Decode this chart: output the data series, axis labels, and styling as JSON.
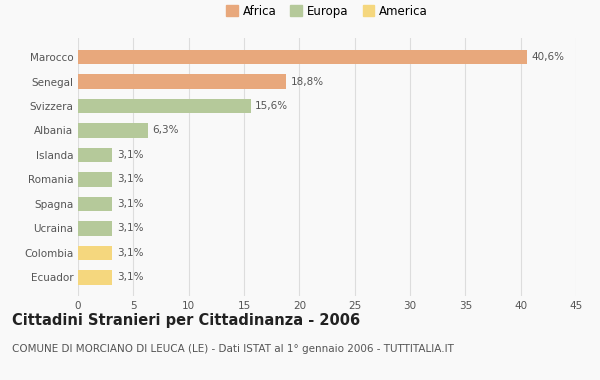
{
  "categories": [
    "Marocco",
    "Senegal",
    "Svizzera",
    "Albania",
    "Islanda",
    "Romania",
    "Spagna",
    "Ucraina",
    "Colombia",
    "Ecuador"
  ],
  "values": [
    40.6,
    18.8,
    15.6,
    6.3,
    3.1,
    3.1,
    3.1,
    3.1,
    3.1,
    3.1
  ],
  "labels": [
    "40,6%",
    "18,8%",
    "15,6%",
    "6,3%",
    "3,1%",
    "3,1%",
    "3,1%",
    "3,1%",
    "3,1%",
    "3,1%"
  ],
  "colors": [
    "#e8a87c",
    "#e8a87c",
    "#b5c99a",
    "#b5c99a",
    "#b5c99a",
    "#b5c99a",
    "#b5c99a",
    "#b5c99a",
    "#f5d77e",
    "#f5d77e"
  ],
  "legend_labels": [
    "Africa",
    "Europa",
    "America"
  ],
  "legend_colors": [
    "#e8a87c",
    "#b5c99a",
    "#f5d77e"
  ],
  "title": "Cittadini Stranieri per Cittadinanza - 2006",
  "subtitle": "COMUNE DI MORCIANO DI LEUCA (LE) - Dati ISTAT al 1° gennaio 2006 - TUTTITALIA.IT",
  "xlim": [
    0,
    45
  ],
  "xticks": [
    0,
    5,
    10,
    15,
    20,
    25,
    30,
    35,
    40,
    45
  ],
  "background_color": "#f9f9f9",
  "grid_color": "#dddddd",
  "bar_height": 0.6,
  "title_fontsize": 10.5,
  "subtitle_fontsize": 7.5,
  "label_fontsize": 7.5,
  "tick_fontsize": 7.5,
  "legend_fontsize": 8.5
}
